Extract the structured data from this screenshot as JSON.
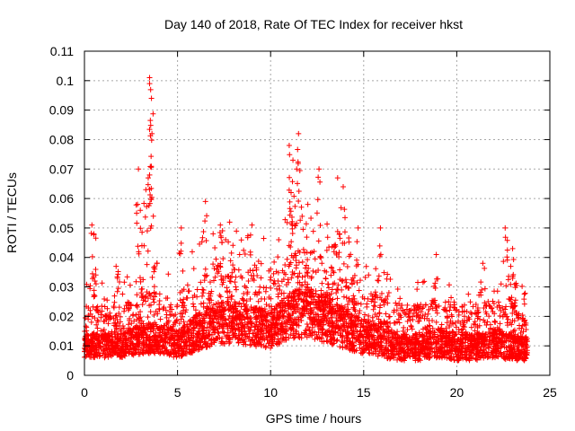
{
  "chart_data": {
    "type": "scatter",
    "title": "Day 140 of 2018, Rate Of TEC Index for receiver hkst",
    "xlabel": "GPS time / hours",
    "ylabel": "ROTI / TECUs",
    "xlim": [
      0,
      25
    ],
    "ylim": [
      0,
      0.11
    ],
    "x_ticks": [
      "0",
      "5",
      "10",
      "15",
      "20",
      "25"
    ],
    "y_ticks": [
      "0",
      "0.01",
      "0.02",
      "0.03",
      "0.04",
      "0.05",
      "0.06",
      "0.07",
      "0.08",
      "0.09",
      "0.1",
      "0.11"
    ],
    "grid": true,
    "marker": "+",
    "color": "#ff0000",
    "series": [
      {
        "name": "ROTI",
        "description": "Dense band of samples between 0 and 24 h, mostly 0.005–0.03 TECU with spikes",
        "envelope": {
          "hours": [
            0,
            1,
            2,
            3,
            4,
            5,
            6,
            7,
            8,
            9,
            10,
            11,
            12,
            13,
            14,
            15,
            16,
            17,
            18,
            19,
            20,
            21,
            22,
            23,
            23.8
          ],
          "base": [
            0.012,
            0.012,
            0.012,
            0.013,
            0.013,
            0.012,
            0.014,
            0.016,
            0.017,
            0.016,
            0.015,
            0.018,
            0.019,
            0.017,
            0.015,
            0.013,
            0.012,
            0.011,
            0.011,
            0.012,
            0.011,
            0.011,
            0.012,
            0.011,
            0.011
          ],
          "spread": [
            0.009,
            0.009,
            0.009,
            0.012,
            0.012,
            0.01,
            0.014,
            0.016,
            0.016,
            0.015,
            0.014,
            0.018,
            0.019,
            0.018,
            0.015,
            0.013,
            0.012,
            0.01,
            0.01,
            0.011,
            0.01,
            0.01,
            0.011,
            0.01,
            0.009
          ]
        },
        "peaks": [
          {
            "x": 0.4,
            "y": 0.051
          },
          {
            "x": 0.5,
            "y": 0.048
          },
          {
            "x": 1.7,
            "y": 0.037
          },
          {
            "x": 2.9,
            "y": 0.07
          },
          {
            "x": 3.0,
            "y": 0.056
          },
          {
            "x": 3.3,
            "y": 0.063
          },
          {
            "x": 3.5,
            "y": 0.101
          },
          {
            "x": 3.5,
            "y": 0.099
          },
          {
            "x": 3.6,
            "y": 0.094
          },
          {
            "x": 3.5,
            "y": 0.068
          },
          {
            "x": 3.7,
            "y": 0.054
          },
          {
            "x": 5.2,
            "y": 0.05
          },
          {
            "x": 6.5,
            "y": 0.059
          },
          {
            "x": 7.3,
            "y": 0.051
          },
          {
            "x": 7.8,
            "y": 0.052
          },
          {
            "x": 9.0,
            "y": 0.051
          },
          {
            "x": 11.0,
            "y": 0.078
          },
          {
            "x": 11.2,
            "y": 0.073
          },
          {
            "x": 11.5,
            "y": 0.082
          },
          {
            "x": 11.4,
            "y": 0.07
          },
          {
            "x": 11.1,
            "y": 0.062
          },
          {
            "x": 12.6,
            "y": 0.07
          },
          {
            "x": 12.0,
            "y": 0.058
          },
          {
            "x": 13.6,
            "y": 0.067
          },
          {
            "x": 13.9,
            "y": 0.064
          },
          {
            "x": 14.7,
            "y": 0.05
          },
          {
            "x": 15.9,
            "y": 0.05
          },
          {
            "x": 18.9,
            "y": 0.041
          },
          {
            "x": 21.4,
            "y": 0.038
          },
          {
            "x": 22.6,
            "y": 0.05
          },
          {
            "x": 23.0,
            "y": 0.043
          },
          {
            "x": 22.9,
            "y": 0.037
          }
        ]
      }
    ]
  }
}
